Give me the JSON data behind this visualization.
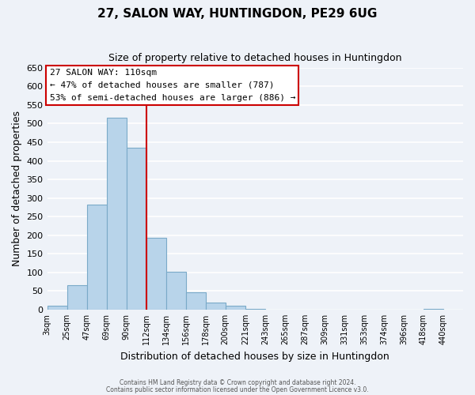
{
  "title": "27, SALON WAY, HUNTINGDON, PE29 6UG",
  "subtitle": "Size of property relative to detached houses in Huntingdon",
  "xlabel": "Distribution of detached houses by size in Huntingdon",
  "ylabel": "Number of detached properties",
  "bar_color": "#b8d4ea",
  "bar_edge_color": "#7aaac8",
  "bin_labels": [
    "3sqm",
    "25sqm",
    "47sqm",
    "69sqm",
    "90sqm",
    "112sqm",
    "134sqm",
    "156sqm",
    "178sqm",
    "200sqm",
    "221sqm",
    "243sqm",
    "265sqm",
    "287sqm",
    "309sqm",
    "331sqm",
    "353sqm",
    "374sqm",
    "396sqm",
    "418sqm",
    "440sqm"
  ],
  "bar_heights": [
    10,
    65,
    283,
    515,
    435,
    193,
    101,
    47,
    19,
    10,
    2,
    0,
    0,
    0,
    0,
    0,
    0,
    0,
    0,
    2,
    0
  ],
  "ylim": [
    0,
    650
  ],
  "yticks": [
    0,
    50,
    100,
    150,
    200,
    250,
    300,
    350,
    400,
    450,
    500,
    550,
    600,
    650
  ],
  "vline_color": "#cc0000",
  "annotation_title": "27 SALON WAY: 110sqm",
  "annotation_line1": "← 47% of detached houses are smaller (787)",
  "annotation_line2": "53% of semi-detached houses are larger (886) →",
  "annotation_box_color": "#ffffff",
  "annotation_box_edge": "#cc0000",
  "footer1": "Contains HM Land Registry data © Crown copyright and database right 2024.",
  "footer2": "Contains public sector information licensed under the Open Government Licence v3.0.",
  "background_color": "#eef2f8",
  "plot_background": "#eef2f8",
  "grid_color": "#ffffff"
}
